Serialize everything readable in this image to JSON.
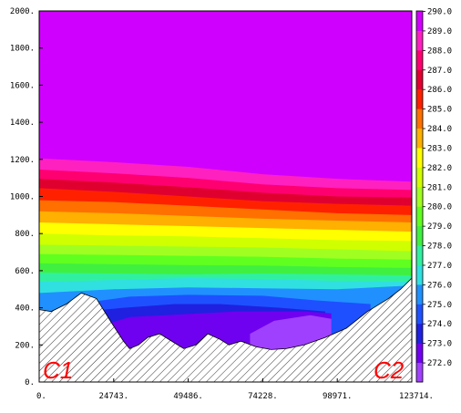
{
  "chart_data": {
    "type": "heatmap",
    "title": "",
    "xlabel": "",
    "ylabel": "",
    "xlim": [
      0,
      123714
    ],
    "ylim": [
      0,
      2000
    ],
    "x_ticks": [
      "0.",
      "24743.",
      "49486.",
      "74228.",
      "98971.",
      "123714."
    ],
    "y_ticks": [
      "0.",
      "200.",
      "400.",
      "600.",
      "800.",
      "1000.",
      "1200.",
      "1400.",
      "1600.",
      "1800.",
      "2000."
    ],
    "colorbar": {
      "labels": [
        "272.0",
        "273.0",
        "274.0",
        "275.0",
        "276.0",
        "277.0",
        "278.0",
        "279.0",
        "280.0",
        "281.0",
        "282.0",
        "283.0",
        "284.0",
        "285.0",
        "286.0",
        "287.0",
        "288.0",
        "289.0",
        "290.0"
      ],
      "colors": [
        "#a040ff",
        "#7000f0",
        "#2020e0",
        "#1e50ff",
        "#2090ff",
        "#30e0e0",
        "#30f0a0",
        "#40f040",
        "#60ff20",
        "#a0ff20",
        "#d0ff00",
        "#ffff00",
        "#ffb000",
        "#ff7000",
        "#ff2000",
        "#e00030",
        "#ff0070",
        "#ff20c0",
        "#d000ff"
      ]
    },
    "contour_levels": [
      {
        "value": 289.0,
        "x": [
          0,
          24743,
          49486,
          74228,
          98971,
          123714
        ],
        "y": [
          1205,
          1185,
          1160,
          1120,
          1095,
          1080
        ]
      },
      {
        "value": 288.0,
        "x": [
          0,
          24743,
          49486,
          74228,
          98971,
          123714
        ],
        "y": [
          1145,
          1125,
          1100,
          1065,
          1045,
          1035
        ]
      },
      {
        "value": 287.0,
        "x": [
          0,
          24743,
          49486,
          74228,
          98971,
          123714
        ],
        "y": [
          1095,
          1075,
          1050,
          1020,
          1000,
          995
        ]
      },
      {
        "value": 286.0,
        "x": [
          0,
          24743,
          49486,
          74228,
          98971,
          123714
        ],
        "y": [
          1045,
          1025,
          1000,
          975,
          960,
          950
        ]
      },
      {
        "value": 285.0,
        "x": [
          0,
          24743,
          49486,
          74228,
          98971,
          123714
        ],
        "y": [
          980,
          970,
          950,
          930,
          910,
          900
        ]
      },
      {
        "value": 284.0,
        "x": [
          0,
          24743,
          49486,
          74228,
          98971,
          123714
        ],
        "y": [
          920,
          910,
          895,
          880,
          870,
          860
        ]
      },
      {
        "value": 283.0,
        "x": [
          0,
          24743,
          49486,
          74228,
          98971,
          123714
        ],
        "y": [
          860,
          850,
          840,
          830,
          820,
          810
        ]
      },
      {
        "value": 282.0,
        "x": [
          0,
          24743,
          49486,
          74228,
          98971,
          123714
        ],
        "y": [
          800,
          790,
          785,
          775,
          765,
          760
        ]
      },
      {
        "value": 281.0,
        "x": [
          0,
          24743,
          49486,
          74228,
          98971,
          123714
        ],
        "y": [
          740,
          735,
          730,
          725,
          715,
          705
        ]
      },
      {
        "value": 280.0,
        "x": [
          0,
          24743,
          49486,
          74228,
          98971,
          123714
        ],
        "y": [
          690,
          685,
          680,
          675,
          665,
          660
        ]
      },
      {
        "value": 279.0,
        "x": [
          0,
          24743,
          49486,
          74228,
          98971,
          123714
        ],
        "y": [
          640,
          635,
          630,
          628,
          620,
          615
        ]
      },
      {
        "value": 278.0,
        "x": [
          0,
          24743,
          49486,
          74228,
          98971,
          123714
        ],
        "y": [
          590,
          585,
          580,
          585,
          580,
          575
        ]
      },
      {
        "value": 277.0,
        "x": [
          0,
          24743,
          49486,
          74228,
          98971,
          123714
        ],
        "y": [
          540,
          550,
          560,
          555,
          545,
          540
        ]
      },
      {
        "value": 276.0,
        "x": [
          0,
          24743,
          49486,
          74228,
          98971,
          123714
        ],
        "y": [
          480,
          500,
          510,
          505,
          500,
          520
        ]
      },
      {
        "value": 275.0,
        "x": [
          12000,
          30000,
          49486,
          74228,
          92000,
          110000
        ],
        "y": [
          420,
          460,
          470,
          465,
          440,
          420
        ]
      },
      {
        "value": 274.0,
        "x": [
          15000,
          28000,
          45000,
          60000,
          80000,
          95000
        ],
        "y": [
          380,
          400,
          420,
          420,
          400,
          380
        ]
      },
      {
        "value": 273.0,
        "x": [
          20000,
          30000,
          65000,
          75000,
          88000,
          97000
        ],
        "y": [
          300,
          350,
          380,
          380,
          380,
          370
        ]
      },
      {
        "value": 272.0,
        "x": [
          70000,
          78000,
          90000,
          97000
        ],
        "y": [
          260,
          330,
          360,
          340
        ]
      }
    ],
    "terrain": {
      "x": [
        0,
        4000,
        9000,
        14000,
        19000,
        24000,
        28000,
        30000,
        33000,
        36000,
        40000,
        45000,
        48000,
        52000,
        56000,
        60000,
        63000,
        67000,
        72000,
        77000,
        82000,
        88000,
        95000,
        102000,
        109000,
        116000,
        120000,
        123714
      ],
      "y": [
        390,
        380,
        420,
        480,
        450,
        320,
        220,
        180,
        200,
        240,
        260,
        210,
        180,
        200,
        260,
        230,
        200,
        220,
        190,
        175,
        180,
        200,
        240,
        290,
        380,
        450,
        500,
        560
      ]
    },
    "annotations": [
      "C1",
      "C2"
    ]
  }
}
